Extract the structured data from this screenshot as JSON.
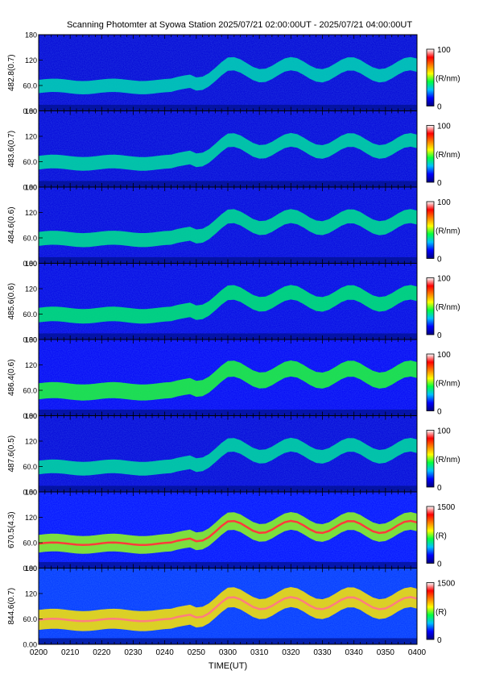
{
  "title": "Scanning Photomter at Syowa Station 2025/07/21 02:00:00UT - 2025/07/21 04:00:00UT",
  "chart_data": {
    "type": "heatmap",
    "title": "Scanning Photomter at Syowa Station 2025/07/21 02:00:00UT - 2025/07/21 04:00:00UT",
    "xlabel": "TIME(UT)",
    "x_range": [
      "02:00",
      "04:00"
    ],
    "x_tick_labels": [
      "0200",
      "0210",
      "0220",
      "0230",
      "0240",
      "0250",
      "0300",
      "0310",
      "0320",
      "0330",
      "0340",
      "0350",
      "0400"
    ],
    "y_range": [
      0,
      180
    ],
    "y_tick_labels": [
      "0.00",
      "60.0",
      "120",
      "180"
    ],
    "colormap": [
      "#000080",
      "#0000ff",
      "#00c0ff",
      "#00ff40",
      "#ffff00",
      "#ff8000",
      "#ff0000",
      "#ffffff"
    ],
    "panels": [
      {
        "ylabel": "482.8(0.7)",
        "cbar_max": "100",
        "cbar_min": "0",
        "cbar_unit": "(R/nm)",
        "level": 0.12
      },
      {
        "ylabel": "483.6(0.7)",
        "cbar_max": "100",
        "cbar_min": "0",
        "cbar_unit": "(R/nm)",
        "level": 0.16
      },
      {
        "ylabel": "484.6(0.6)",
        "cbar_max": "100",
        "cbar_min": "0",
        "cbar_unit": "(R/nm)",
        "level": 0.2
      },
      {
        "ylabel": "485.6(0.6)",
        "cbar_max": "100",
        "cbar_min": "0",
        "cbar_unit": "(R/nm)",
        "level": 0.26
      },
      {
        "ylabel": "486.4(0.6)",
        "cbar_max": "100",
        "cbar_min": "0",
        "cbar_unit": "(R/nm)",
        "level": 0.42
      },
      {
        "ylabel": "487.6(0.5)",
        "cbar_max": "100",
        "cbar_min": "0",
        "cbar_unit": "(R/nm)",
        "level": 0.16
      },
      {
        "ylabel": "670.5(4.3)",
        "cbar_max": "1500",
        "cbar_min": "0",
        "cbar_unit": "(R)",
        "level": 0.6
      },
      {
        "ylabel": "844.6(0.7)",
        "cbar_max": "1500",
        "cbar_min": "0",
        "cbar_unit": "(R)",
        "level": 0.85
      }
    ]
  }
}
